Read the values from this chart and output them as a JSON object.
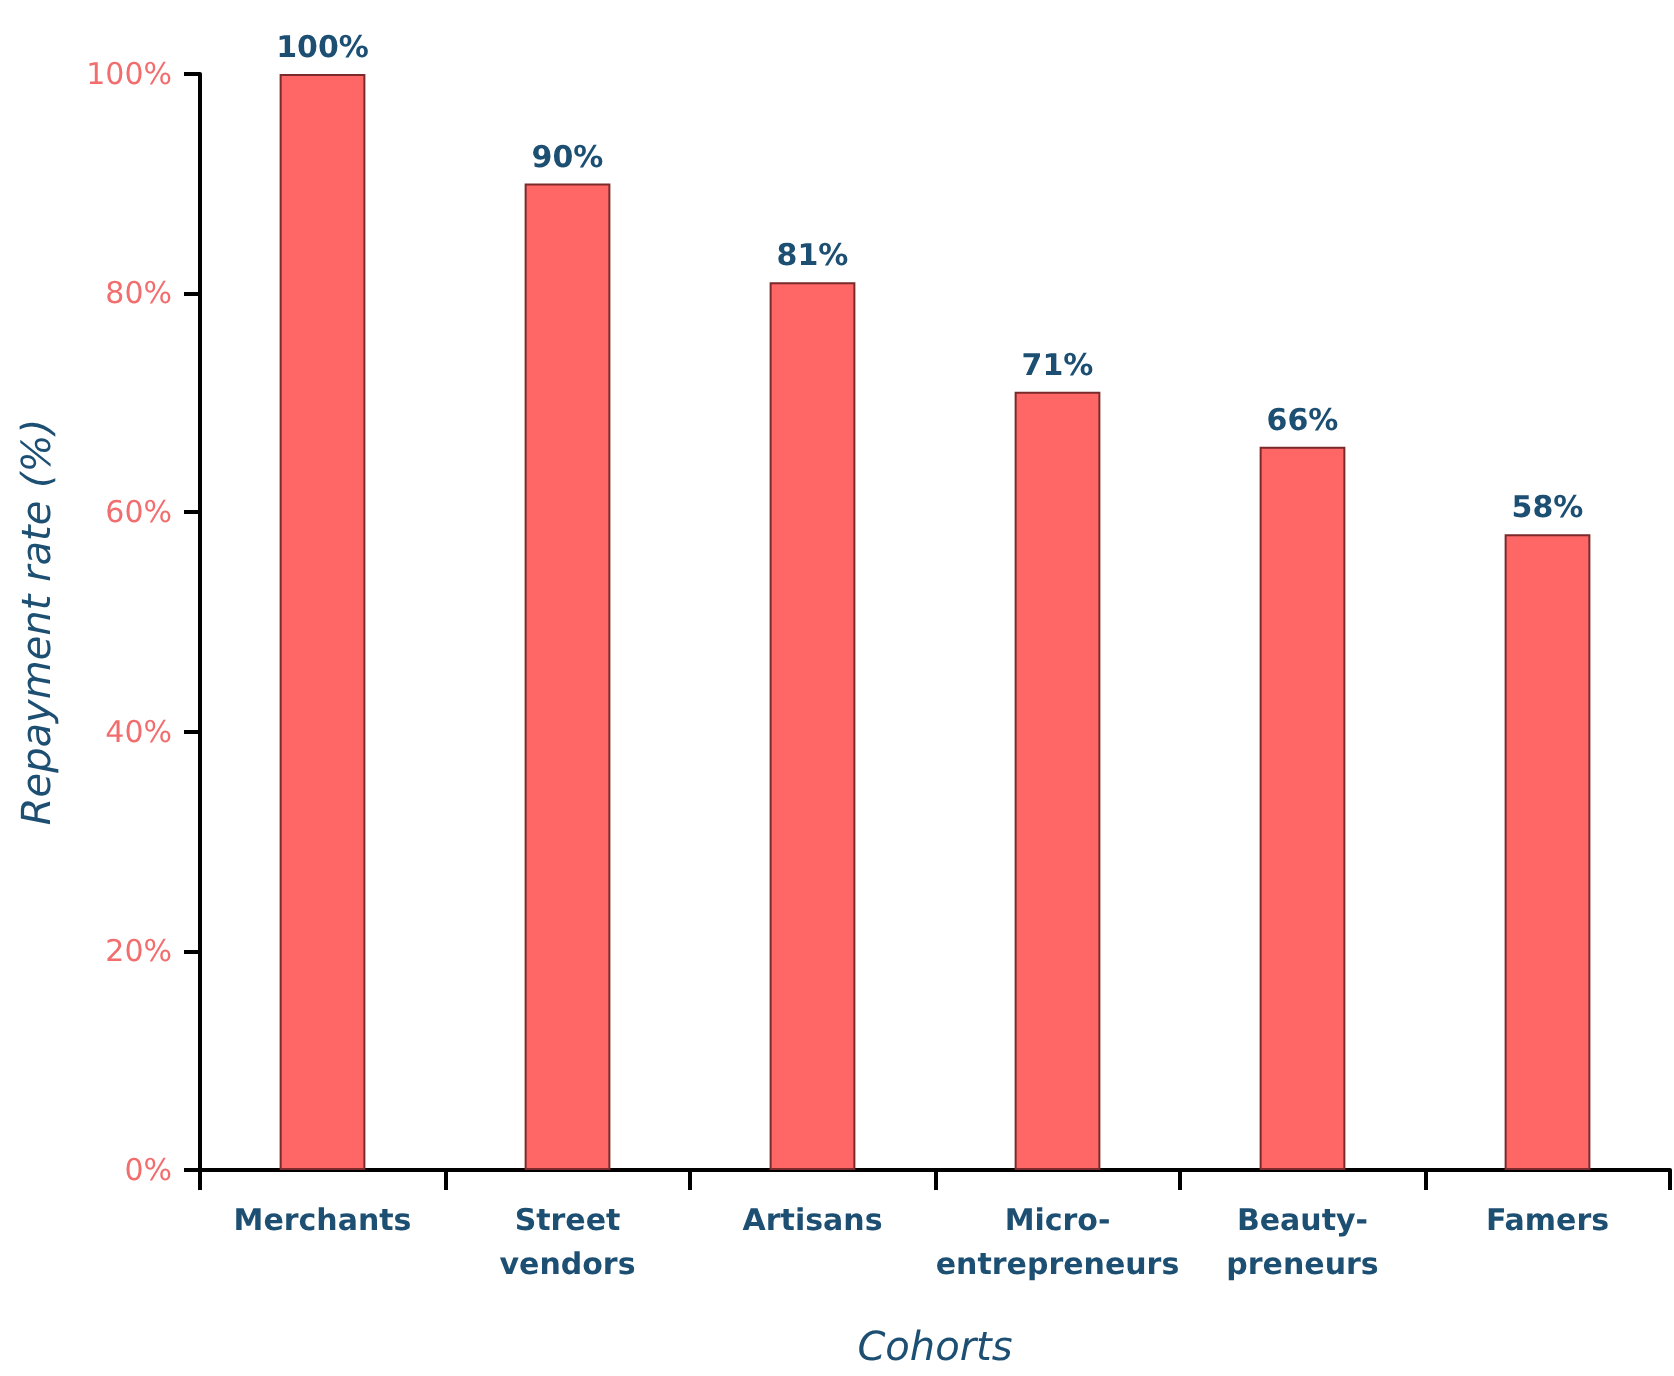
{
  "chart_data": {
    "type": "bar",
    "xlabel": "Cohorts",
    "ylabel": "Repayment rate (%)",
    "categories": [
      "Merchants",
      "Street vendors",
      "Artisans",
      "Micro-entrepreneurs",
      "Beauty-preneurs",
      "Famers"
    ],
    "values": [
      100,
      90,
      81,
      71,
      66,
      58
    ],
    "color": "#ff6666",
    "value_labels": [
      "100%",
      "90%",
      "81%",
      "71%",
      "66%",
      "58%"
    ],
    "ylim": [
      0,
      100
    ],
    "yticks": [
      {
        "value": 0,
        "label": "0%"
      },
      {
        "value": 20,
        "label": "20%"
      },
      {
        "value": 40,
        "label": "40%"
      },
      {
        "value": 60,
        "label": "60%"
      },
      {
        "value": 80,
        "label": "80%"
      },
      {
        "value": 100,
        "label": "100%"
      }
    ],
    "grid": false
  }
}
